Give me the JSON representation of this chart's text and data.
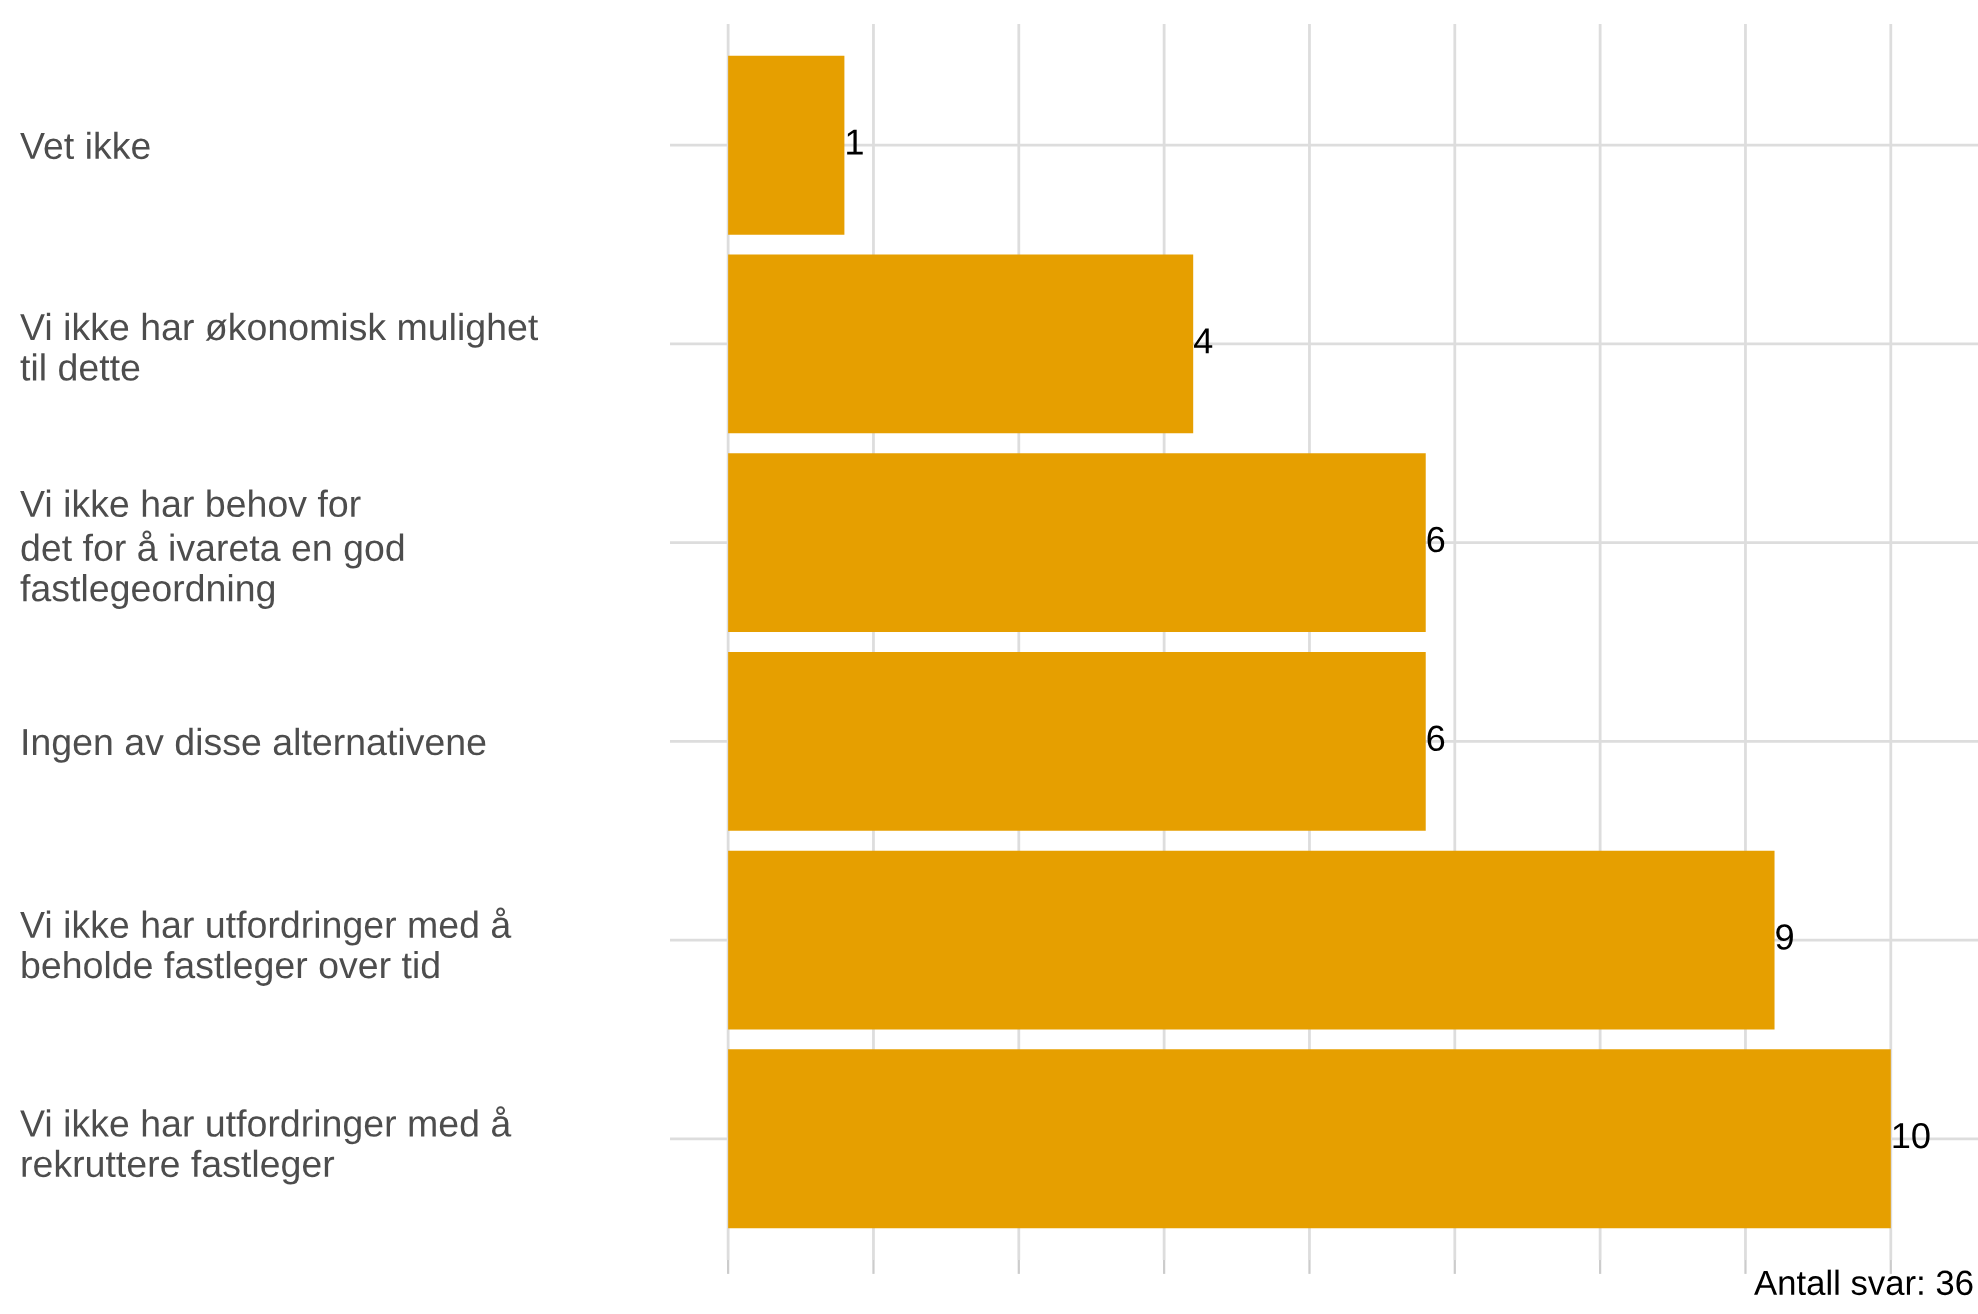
{
  "chart_data": {
    "type": "bar",
    "orientation": "horizontal",
    "categories": [
      "Vet ikke",
      "Vi ikke har økonomisk mulighet\ntil dette",
      "Vi ikke har behov for\ndet for å ivareta en god\nfastlegeordning",
      "Ingen av disse alternativene",
      "Vi ikke har utfordringer med å\nbeholde fastleger over tid",
      "Vi ikke har utfordringer med å\nrekruttere fastleger"
    ],
    "values": [
      1,
      4,
      6,
      6,
      9,
      10
    ],
    "color": "#e69f00",
    "data_labels": true,
    "xlim": [
      -0.5,
      10.75
    ],
    "xticks": [
      {
        "value": 0,
        "label": null
      },
      {
        "value": 1.25,
        "label": null
      },
      {
        "value": 2.5,
        "label": null
      },
      {
        "value": 3.75,
        "label": null
      },
      {
        "value": 5,
        "label": null
      },
      {
        "value": 6.25,
        "label": null
      },
      {
        "value": 7.5,
        "label": null
      },
      {
        "value": 8.75,
        "label": null
      },
      {
        "value": 10,
        "label": null
      }
    ],
    "tick_labels": "y",
    "grid": true,
    "annotations": [
      "Antall svar: 36"
    ]
  }
}
